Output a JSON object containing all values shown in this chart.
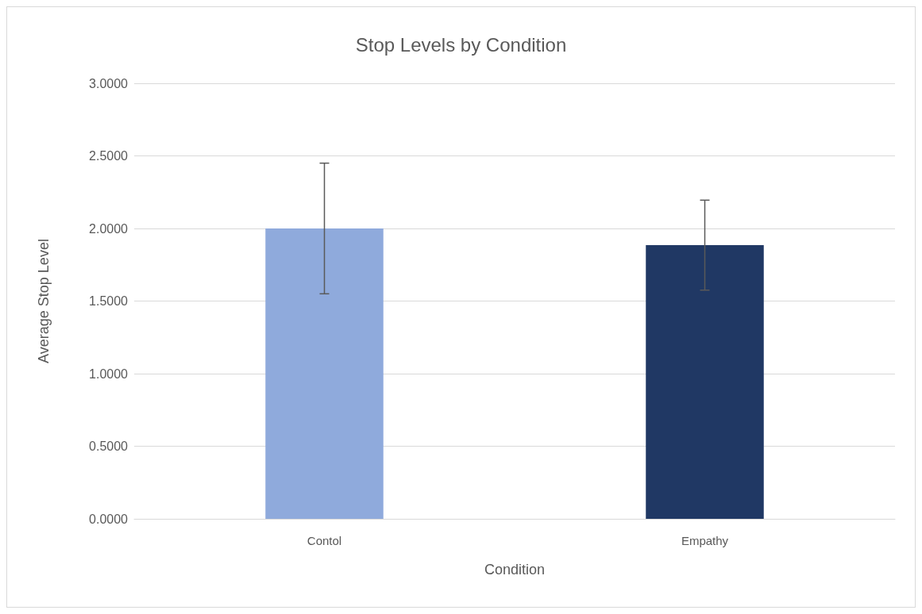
{
  "chart_data": {
    "type": "bar",
    "title": "Stop Levels by Condition",
    "xlabel": "Condition",
    "ylabel": "Average Stop Level",
    "categories": [
      "Contol",
      "Empathy"
    ],
    "values": [
      2.0,
      1.885
    ],
    "colors": [
      "#8faadc",
      "#203864"
    ],
    "errors": [
      0.45,
      0.31
    ],
    "ylim": [
      0,
      3
    ],
    "yticks": [
      {
        "value": 0,
        "label": "0.0000"
      },
      {
        "value": 0.5,
        "label": "0.5000"
      },
      {
        "value": 1,
        "label": "1.0000"
      },
      {
        "value": 1.5,
        "label": "1.5000"
      },
      {
        "value": 2,
        "label": "2.0000"
      },
      {
        "value": 2.5,
        "label": "2.5000"
      },
      {
        "value": 3,
        "label": "3.0000"
      }
    ],
    "grid": "y"
  }
}
